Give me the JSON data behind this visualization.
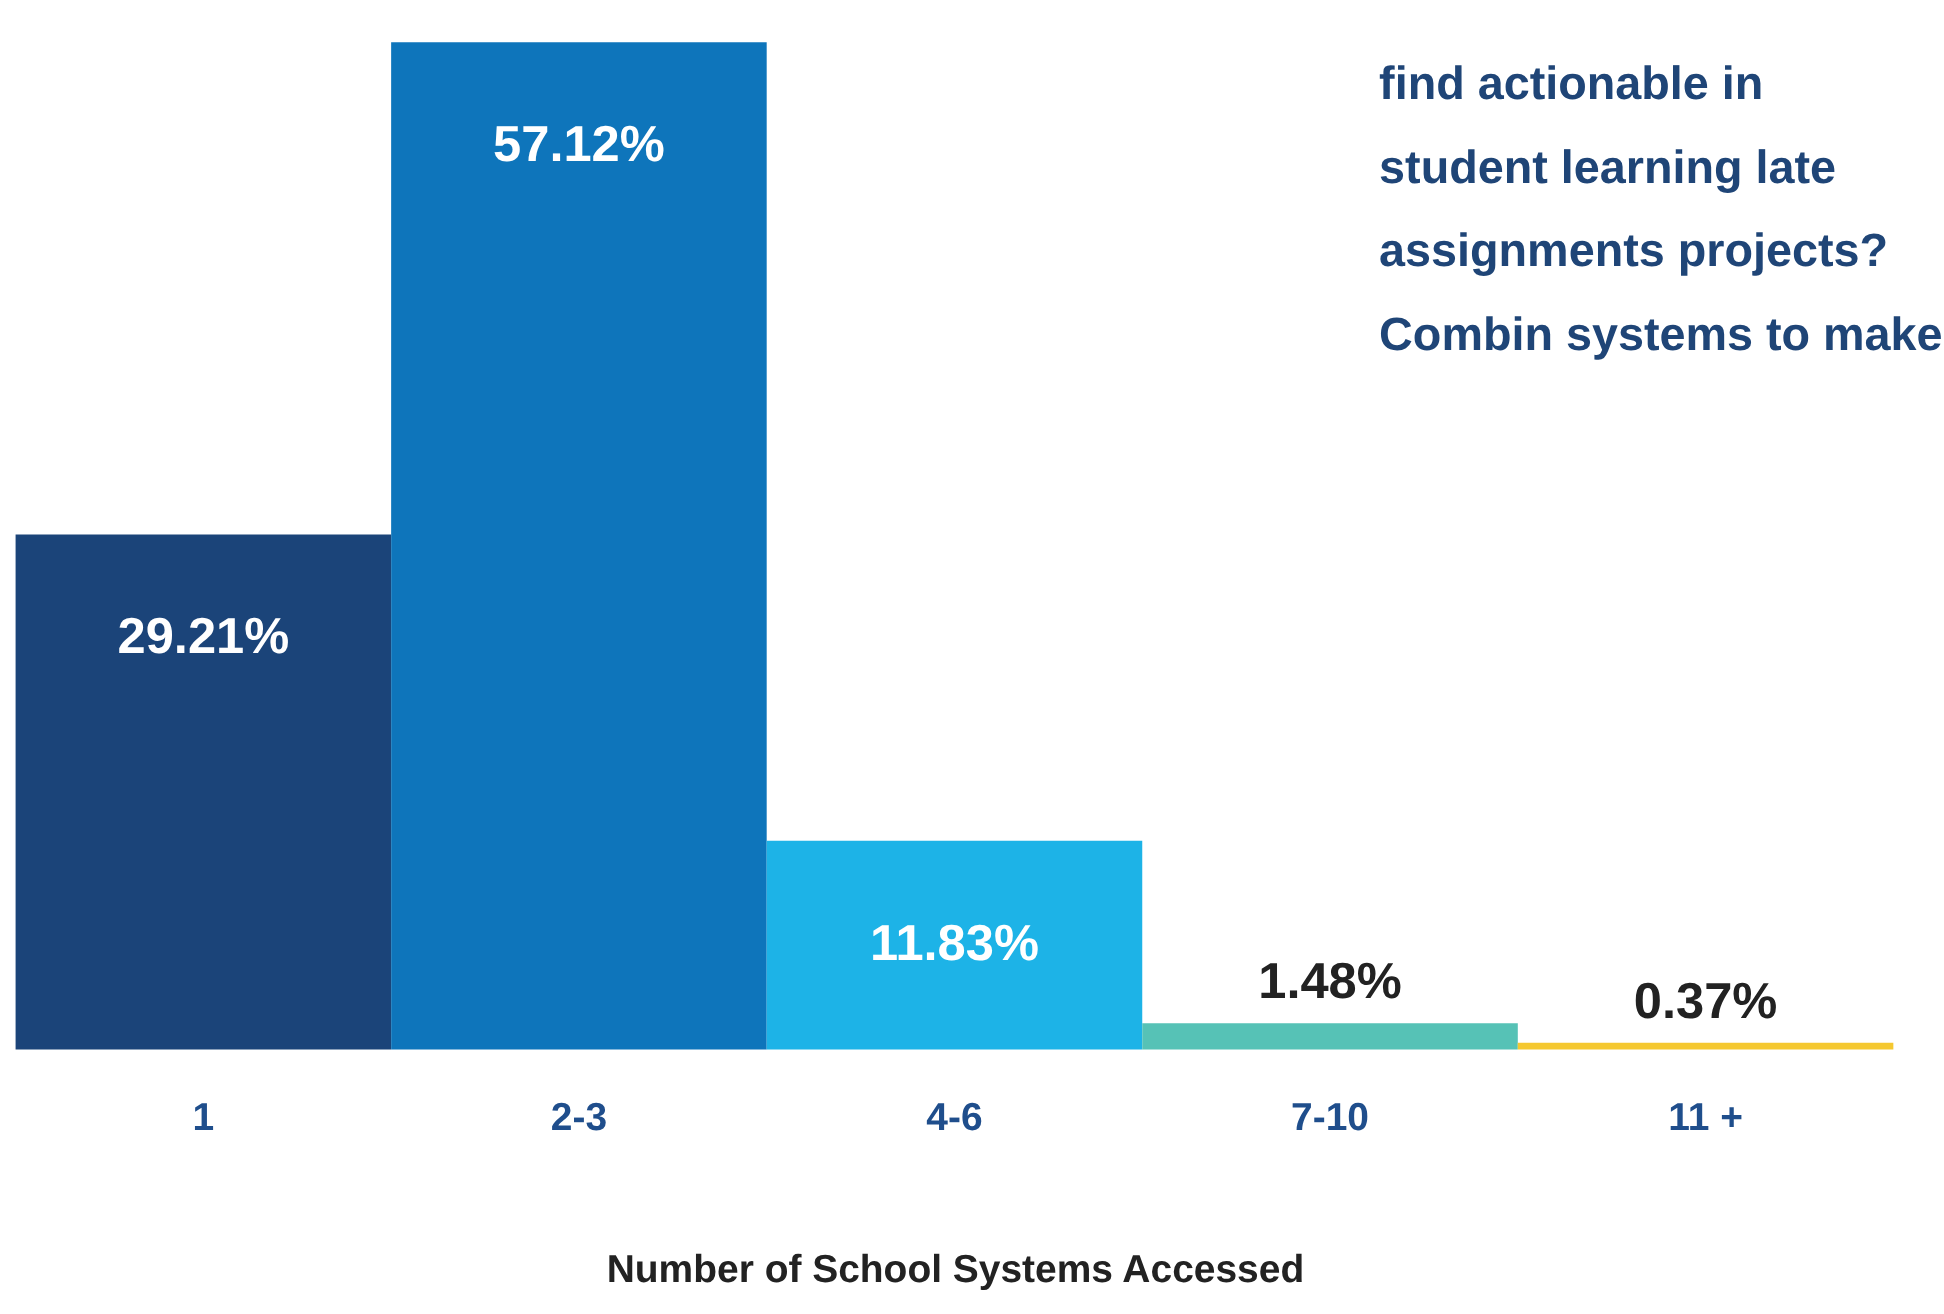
{
  "chart_data": {
    "type": "bar",
    "xlabel": "Number of School Systems Accessed",
    "categories": [
      "1",
      "2-3",
      "4-6",
      "7-10",
      "11 +"
    ],
    "values": [
      29.21,
      57.12,
      11.83,
      1.48,
      0.37
    ],
    "value_labels": [
      "29.21%",
      "57.12%",
      "11.83%",
      "1.48%",
      "0.37%"
    ],
    "colors": [
      "#1b4479",
      "#0e75bb",
      "#1db3e7",
      "#56c2b6",
      "#f5c830"
    ],
    "annotations": [
      "find actionable in student learning late assignments projects? Combin systems to make"
    ],
    "grid": false
  }
}
